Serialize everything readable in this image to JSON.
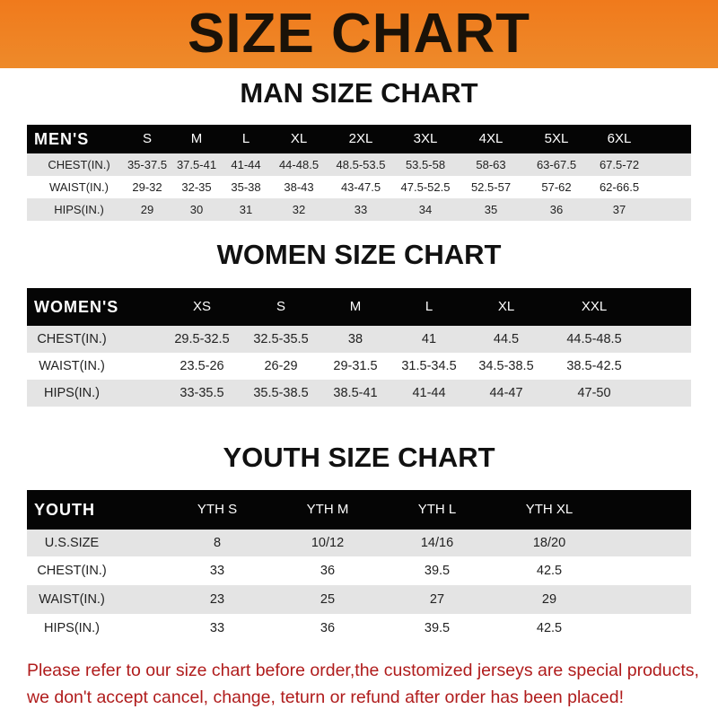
{
  "title": "SIZE CHART",
  "colors": {
    "banner": "#f07a1c",
    "header_row": "#050505",
    "note": "#b01c1c"
  },
  "men": {
    "title": "MAN SIZE CHART",
    "header": [
      "MEN'S",
      "S",
      "M",
      "L",
      "XL",
      "2XL",
      "3XL",
      "4XL",
      "5XL",
      "6XL"
    ],
    "rows": [
      [
        "CHEST(IN.)",
        "35-37.5",
        "37.5-41",
        "41-44",
        "44-48.5",
        "48.5-53.5",
        "53.5-58",
        "58-63",
        "63-67.5",
        "67.5-72"
      ],
      [
        "WAIST(IN.)",
        "29-32",
        "32-35",
        "35-38",
        "38-43",
        "43-47.5",
        "47.5-52.5",
        "52.5-57",
        "57-62",
        "62-66.5"
      ],
      [
        "HIPS(IN.)",
        "29",
        "30",
        "31",
        "32",
        "33",
        "34",
        "35",
        "36",
        "37"
      ]
    ]
  },
  "women": {
    "title": "WOMEN SIZE CHART",
    "header": [
      "WOMEN'S",
      "XS",
      "S",
      "M",
      "L",
      "XL",
      "XXL"
    ],
    "rows": [
      [
        "CHEST(IN.)",
        "29.5-32.5",
        "32.5-35.5",
        "38",
        "41",
        "44.5",
        "44.5-48.5"
      ],
      [
        "WAIST(IN.)",
        "23.5-26",
        "26-29",
        "29-31.5",
        "31.5-34.5",
        "34.5-38.5",
        "38.5-42.5"
      ],
      [
        "HIPS(IN.)",
        "33-35.5",
        "35.5-38.5",
        "38.5-41",
        "41-44",
        "44-47",
        "47-50"
      ]
    ]
  },
  "youth": {
    "title": "YOUTH SIZE CHART",
    "header": [
      "YOUTH",
      "YTH S",
      "YTH M",
      "YTH L",
      "YTH XL"
    ],
    "rows": [
      [
        "U.S.SIZE",
        "8",
        "10/12",
        "14/16",
        "18/20"
      ],
      [
        "CHEST(IN.)",
        "33",
        "36",
        "39.5",
        "42.5"
      ],
      [
        "WAIST(IN.)",
        "23",
        "25",
        "27",
        "29"
      ],
      [
        "HIPS(IN.)",
        "33",
        "36",
        "39.5",
        "42.5"
      ]
    ]
  },
  "note": {
    "line1": "Please refer to our size chart before order,the customized jerseys are special products,",
    "line2": "we don't accept cancel, change, teturn or refund after order has been placed!"
  }
}
